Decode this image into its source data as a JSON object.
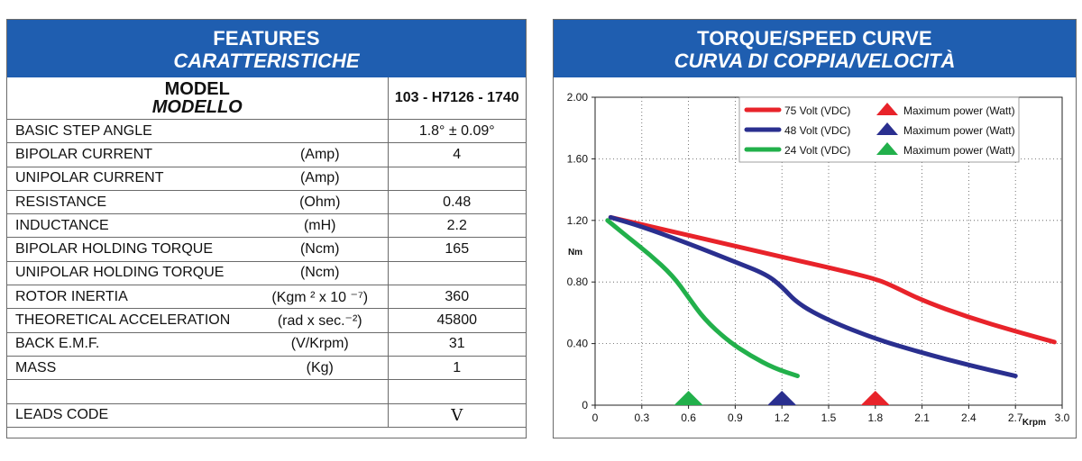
{
  "features": {
    "title": "FEATURES",
    "subtitle": "CARATTERISTICHE",
    "model_label": "MODEL",
    "model_label_it": "MODELLO",
    "model_value": "103 - H7126 - 1740",
    "rows": [
      {
        "name": "BASIC STEP ANGLE",
        "unit": "",
        "value": "1.8° ± 0.09°"
      },
      {
        "name": "BIPOLAR CURRENT",
        "unit": "(Amp)",
        "value": "4"
      },
      {
        "name": "UNIPOLAR CURRENT",
        "unit": "(Amp)",
        "value": ""
      },
      {
        "name": "RESISTANCE",
        "unit": "(Ohm)",
        "value": "0.48"
      },
      {
        "name": "INDUCTANCE",
        "unit": "(mH)",
        "value": "2.2"
      },
      {
        "name": "BIPOLAR HOLDING TORQUE",
        "unit": "(Ncm)",
        "value": "165"
      },
      {
        "name": "UNIPOLAR HOLDING TORQUE",
        "unit": "(Ncm)",
        "value": ""
      },
      {
        "name": "ROTOR INERTIA",
        "unit": "(Kgm ² x 10 ⁻⁷)",
        "value": "360"
      },
      {
        "name": "THEORETICAL ACCELERATION",
        "unit": "(rad x sec.⁻²)",
        "value": "45800"
      },
      {
        "name": "BACK E.M.F.",
        "unit": "(V/Krpm)",
        "value": "31"
      },
      {
        "name": "MASS",
        "unit": "(Kg)",
        "value": "1"
      },
      {
        "name": "",
        "unit": "",
        "value": ""
      },
      {
        "name": "LEADS CODE",
        "unit": "",
        "value": "V"
      }
    ]
  },
  "chart_panel": {
    "title": "TORQUE/SPEED CURVE",
    "subtitle": "CURVA DI COPPIA/VELOCITÀ"
  },
  "chart_data": {
    "type": "line",
    "title": "TORQUE/SPEED CURVE",
    "subtitle": "CURVA DI COPPIA/VELOCITÀ",
    "xlabel": "Krpm",
    "ylabel": "Nm",
    "xlim": [
      0,
      3.0
    ],
    "ylim": [
      0,
      2.0
    ],
    "x_ticks": [
      "0",
      "0.3",
      "0.6",
      "0.9",
      "1.2",
      "1.5",
      "1.8",
      "2.1",
      "2.4",
      "2.7",
      "3.0"
    ],
    "y_ticks": [
      "0",
      "0.40",
      "0.80",
      "1.20",
      "1.60",
      "2.00"
    ],
    "grid": "dotted",
    "legend_position": "top-right",
    "max_power_marker_label": "Maximum power (Watt)",
    "series": [
      {
        "name": "75 Volt (VDC)",
        "color": "#e8232a",
        "x": [
          0.1,
          0.4,
          0.7,
          1.0,
          1.3,
          1.6,
          1.8,
          1.9,
          2.1,
          2.4,
          2.7,
          2.95
        ],
        "y": [
          1.22,
          1.15,
          1.08,
          1.01,
          0.94,
          0.87,
          0.82,
          0.78,
          0.68,
          0.57,
          0.48,
          0.41
        ],
        "max_power_krpm": 1.8
      },
      {
        "name": "48 Volt (VDC)",
        "color": "#2a2f8f",
        "x": [
          0.1,
          0.3,
          0.6,
          0.9,
          1.1,
          1.2,
          1.3,
          1.5,
          1.8,
          2.1,
          2.4,
          2.7
        ],
        "y": [
          1.22,
          1.16,
          1.05,
          0.93,
          0.85,
          0.77,
          0.66,
          0.55,
          0.43,
          0.34,
          0.26,
          0.19
        ],
        "max_power_krpm": 1.2
      },
      {
        "name": "24 Volt (VDC)",
        "color": "#22b04b",
        "x": [
          0.08,
          0.2,
          0.35,
          0.5,
          0.6,
          0.7,
          0.85,
          1.0,
          1.15,
          1.3
        ],
        "y": [
          1.2,
          1.1,
          0.98,
          0.84,
          0.7,
          0.56,
          0.42,
          0.32,
          0.24,
          0.19
        ],
        "max_power_krpm": 0.6
      }
    ]
  }
}
